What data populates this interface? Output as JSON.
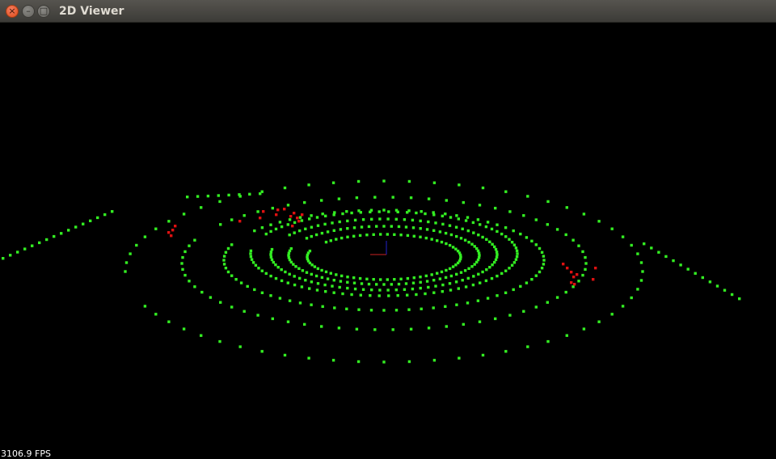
{
  "window": {
    "title": "2D Viewer",
    "controls": {
      "close_glyph": "×",
      "minimize_glyph": "–",
      "maximize_glyph": "□"
    }
  },
  "viewer": {
    "background": "#000000",
    "fps_text": "3106.9 FPS",
    "point_colors": {
      "static": "#33ee22",
      "dynamic": "#dd1111"
    },
    "axis_colors": {
      "x": "#cc2222",
      "y": "#2222cc"
    }
  }
}
